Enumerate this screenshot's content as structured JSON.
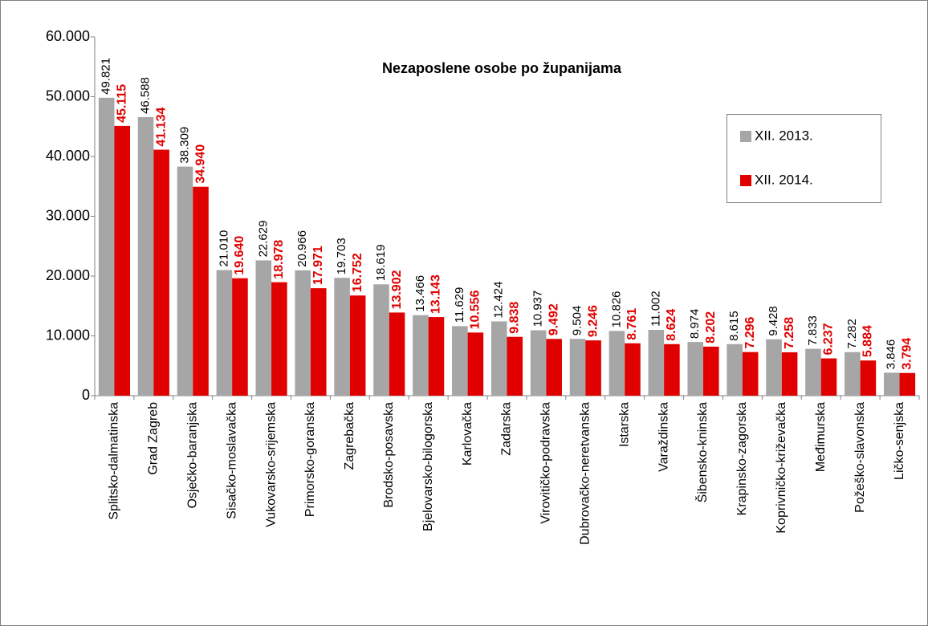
{
  "chart_data": {
    "type": "bar",
    "title": "Nezaposlene osobe po županijama",
    "categories": [
      "Splitsko-dalmatinska",
      "Grad Zagreb",
      "Osječko-baranjska",
      "Sisačko-moslavačka",
      "Vukovarsko-srijemska",
      "Primorsko-goranska",
      "Zagrebačka",
      "Brodsko-posavska",
      "Bjelovarsko-bilogorska",
      "Karlovačka",
      "Zadarska",
      "Virovitičko-podravska",
      "Dubrovačko-neretvanska",
      "Istarska",
      "Varaždinska",
      "Šibensko-kninska",
      "Krapinsko-zagorska",
      "Koprivničko-križevačka",
      "Međimurska",
      "Požeško-slavonska",
      "Ličko-senjska"
    ],
    "series": [
      {
        "name": "XII. 2013.",
        "color": "#a6a6a6",
        "values": [
          49821,
          46588,
          38309,
          21010,
          22629,
          20966,
          19703,
          18619,
          13466,
          11629,
          12424,
          10937,
          9504,
          10826,
          11002,
          8974,
          8615,
          9428,
          7833,
          7282,
          3846
        ],
        "value_labels": [
          "49.821",
          "46.588",
          "38.309",
          "21.010",
          "22.629",
          "20.966",
          "19.703",
          "18.619",
          "13.466",
          "11.629",
          "12.424",
          "10.937",
          "9.504",
          "10.826",
          "11.002",
          "8.974",
          "8.615",
          "9.428",
          "7.833",
          "7.282",
          "3.846"
        ]
      },
      {
        "name": "XII. 2014.",
        "color": "#e00000",
        "values": [
          45115,
          41134,
          34940,
          19640,
          18978,
          17971,
          16752,
          13902,
          13143,
          10556,
          9838,
          9492,
          9246,
          8761,
          8624,
          8202,
          7296,
          7258,
          6237,
          5884,
          3794
        ],
        "value_labels": [
          "45.115",
          "41.134",
          "34.940",
          "19.640",
          "18.978",
          "17.971",
          "16.752",
          "13.902",
          "13.143",
          "10.556",
          "9.838",
          "9.492",
          "9.246",
          "8.761",
          "8.624",
          "8.202",
          "7.296",
          "7.258",
          "6.237",
          "5.884",
          "3.794"
        ]
      }
    ],
    "ylim": [
      0,
      60000
    ],
    "yticks": [
      0,
      {
        "value": 10000,
        "label": "10.000"
      },
      {
        "value": 20000,
        "label": "20.000"
      },
      {
        "value": 30000,
        "label": "30.000"
      },
      {
        "value": 40000,
        "label": "40.000"
      },
      {
        "value": 50000,
        "label": "50.000"
      },
      {
        "value": 60000,
        "label": "60.000"
      }
    ],
    "grid": false,
    "legend": "upper right"
  }
}
